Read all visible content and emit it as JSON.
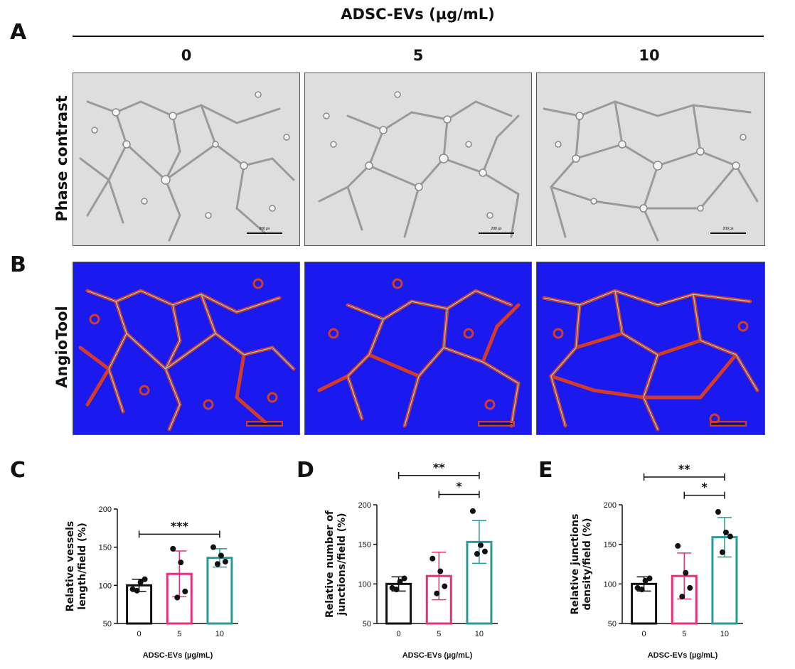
{
  "header": {
    "title": "ADSC-EVs (µg/mL)"
  },
  "panel_letters": {
    "A": "A",
    "B": "B",
    "C": "C",
    "D": "D",
    "E": "E"
  },
  "columns": [
    "0",
    "5",
    "10"
  ],
  "rows": {
    "phase": "Phase contrast",
    "angio": "AngioTool"
  },
  "scale_bar_text": "200 px",
  "colors": {
    "ctrl": "#111111",
    "five": "#e8307a",
    "ten": "#2a9a96",
    "angio_bg": "#1a1aee",
    "angio_vessel": "#d23a2a",
    "phase_bg": "#dcdcdc"
  },
  "chart_data": [
    {
      "id": "C",
      "type": "bar",
      "categories": [
        "0",
        "5",
        "10"
      ],
      "values": [
        100,
        115,
        136
      ],
      "errors": [
        8,
        30,
        12
      ],
      "points": [
        [
          95,
          104,
          108,
          93
        ],
        [
          148,
          130,
          92,
          84
        ],
        [
          150,
          139,
          131,
          128
        ]
      ],
      "ylim": [
        50,
        200
      ],
      "yticks": [
        50,
        100,
        150,
        200
      ],
      "ylabel": [
        "Relative vessels",
        "length/field (%)"
      ],
      "xlabel": "ADSC-EVs (µg/mL)",
      "significance": [
        {
          "from": 0,
          "to": 2,
          "label": "***",
          "y": 167
        }
      ]
    },
    {
      "id": "D",
      "type": "bar",
      "categories": [
        "0",
        "5",
        "10"
      ],
      "values": [
        100,
        110,
        153
      ],
      "errors": [
        9,
        30,
        27
      ],
      "points": [
        [
          95,
          103,
          107,
          93
        ],
        [
          132,
          116,
          97,
          88
        ],
        [
          192,
          149,
          141,
          138
        ]
      ],
      "ylim": [
        50,
        200
      ],
      "yticks": [
        50,
        100,
        150,
        200
      ],
      "ylabel": [
        "Relative number of",
        "junctions/field (%)"
      ],
      "xlabel": "ADSC-EVs (µg/mL)",
      "significance": [
        {
          "from": 0,
          "to": 2,
          "label": "**",
          "y": 237
        },
        {
          "from": 1,
          "to": 2,
          "label": "*",
          "y": 213
        }
      ]
    },
    {
      "id": "E",
      "type": "bar",
      "categories": [
        "0",
        "5",
        "10"
      ],
      "values": [
        100,
        110,
        159
      ],
      "errors": [
        9,
        29,
        25
      ],
      "points": [
        [
          95,
          104,
          107,
          93
        ],
        [
          148,
          114,
          95,
          84
        ],
        [
          191,
          165,
          160,
          140
        ]
      ],
      "ylim": [
        50,
        200
      ],
      "yticks": [
        50,
        100,
        150,
        200
      ],
      "ylabel": [
        "Relative junctions",
        "density/field (%)"
      ],
      "xlabel": "ADSC-EVs (µg/mL)",
      "significance": [
        {
          "from": 0,
          "to": 2,
          "label": "**",
          "y": 235
        },
        {
          "from": 1,
          "to": 2,
          "label": "*",
          "y": 212
        }
      ]
    }
  ]
}
